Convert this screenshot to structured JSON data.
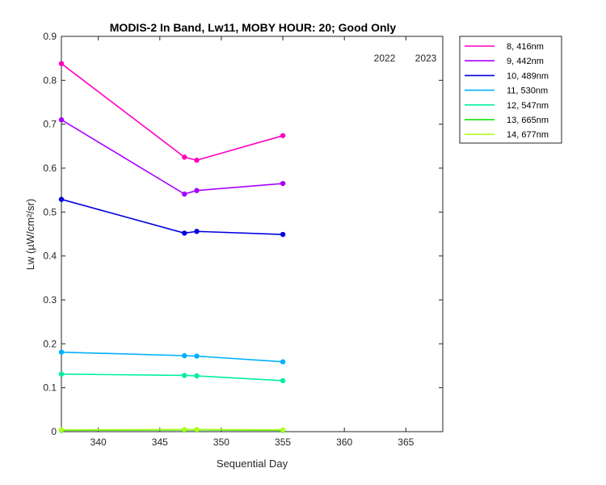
{
  "chart_data": {
    "type": "line",
    "title": "MODIS-2 In Band,  Lw11, MOBY HOUR: 20;  Good Only",
    "xlabel": "Sequential Day",
    "ylabel": "Lw (µW/cm²/sr)",
    "xlim": [
      337,
      368
    ],
    "ylim": [
      0,
      0.9
    ],
    "xticks": [
      "340",
      "345",
      "350",
      "355",
      "360",
      "365"
    ],
    "yticks": [
      "0",
      "0.1",
      "0.2",
      "0.3",
      "0.4",
      "0.5",
      "0.6",
      "0.7",
      "0.8",
      "0.9"
    ],
    "annotations": [
      "2022",
      "2023"
    ],
    "legend_position": "outside-right-top",
    "grid": false,
    "x": [
      337,
      347,
      348,
      355
    ],
    "series": [
      {
        "name": "8, 416nm",
        "color": "#ff00c0",
        "values": [
          0.838,
          0.625,
          0.618,
          0.674
        ]
      },
      {
        "name": "9, 442nm",
        "color": "#a800ff",
        "values": [
          0.71,
          0.541,
          0.549,
          0.565
        ]
      },
      {
        "name": "10, 489nm",
        "color": "#0000e0",
        "values": [
          0.529,
          0.452,
          0.456,
          0.449
        ]
      },
      {
        "name": "11, 530nm",
        "color": "#00b0ff",
        "values": [
          0.181,
          0.173,
          0.172,
          0.159
        ]
      },
      {
        "name": "12, 547nm",
        "color": "#00f0a0",
        "values": [
          0.131,
          0.128,
          0.127,
          0.116
        ]
      },
      {
        "name": "13, 665nm",
        "color": "#00e000",
        "values": [
          0.003,
          0.004,
          0.004,
          0.003
        ]
      },
      {
        "name": "14, 677nm",
        "color": "#b0ff20",
        "values": [
          0.004,
          0.005,
          0.005,
          0.004
        ]
      }
    ]
  }
}
